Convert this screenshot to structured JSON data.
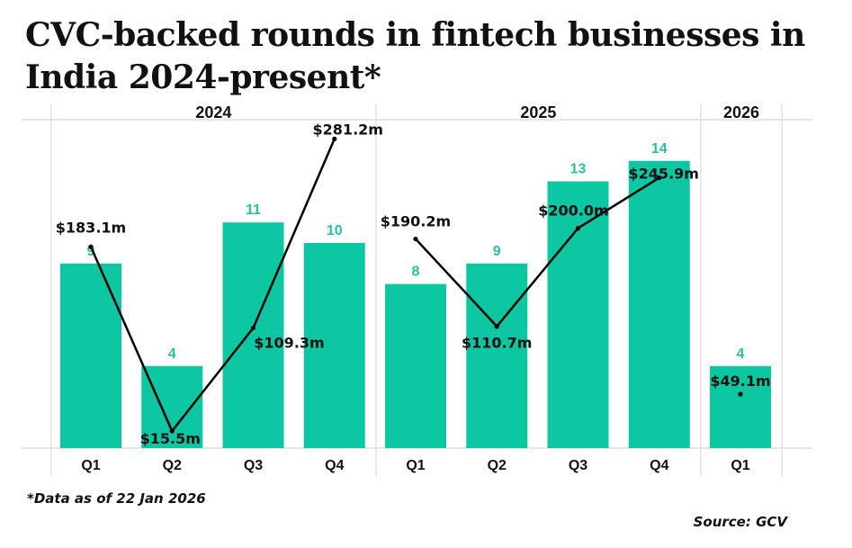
{
  "chart_data": {
    "type": "bar",
    "title": "CVC-backed rounds in fintech businesses in India 2024-present*",
    "year_groups": [
      {
        "label": "2024",
        "quarters": 4
      },
      {
        "label": "2025",
        "quarters": 4
      },
      {
        "label": "2026",
        "quarters": 1
      }
    ],
    "categories": [
      "Q1",
      "Q2",
      "Q3",
      "Q4",
      "Q1",
      "Q2",
      "Q3",
      "Q4",
      "Q1"
    ],
    "series": [
      {
        "type": "bar",
        "values": [
          9,
          4,
          11,
          10,
          8,
          9,
          13,
          14,
          4
        ],
        "labels": [
          "9",
          "4",
          "11",
          "10",
          "8",
          "9",
          "13",
          "14",
          "4"
        ],
        "color": "#0dc6a2"
      },
      {
        "type": "line",
        "values": [
          183.1,
          15.5,
          109.3,
          281.2,
          190.2,
          110.7,
          200.0,
          245.9,
          49.1
        ],
        "labels": [
          "$183.1m",
          "$15.5m",
          "$109.3m",
          "$281.2m",
          "$190.2m",
          "$110.7m",
          "$200.0m",
          "$245.9m",
          "$49.1m"
        ],
        "color": "#000000",
        "line_segments": [
          [
            0,
            3
          ],
          [
            4,
            7
          ],
          [
            8,
            8
          ]
        ]
      }
    ],
    "grid": true
  },
  "footnote": "*Data as of 22 Jan 2026",
  "source": "Source: GCV",
  "colors": {
    "bar": "#0dc6a2",
    "bar_label": "#2bbf9f",
    "line": "#000000",
    "grid": "#dddddd"
  }
}
